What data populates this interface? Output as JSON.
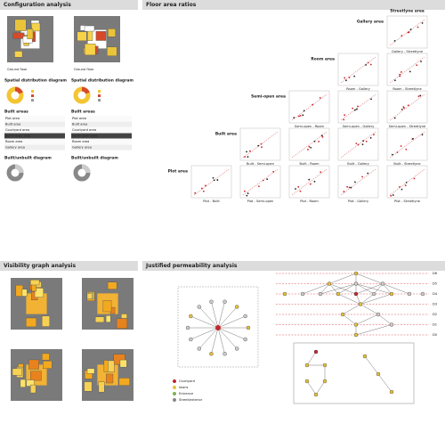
{
  "configuration": {
    "title": "Configuration analysis",
    "columns": [
      {
        "plan_label": "Ground floor",
        "distribution_title": "Spatial distribution diagram",
        "built_title": "Built areas",
        "unbuilt_title": "Built/unbuilt diagram"
      },
      {
        "plan_label": "Ground floor",
        "distribution_title": "Spatial distribution diagram",
        "built_title": "Built areas",
        "unbuilt_title": "Built/unbuilt diagram"
      }
    ],
    "table_rows": [
      "Plot area",
      "Built area",
      "Courtyard area",
      "Semi-open area",
      "Room area",
      "Gallery area"
    ]
  },
  "floor_area": {
    "title": "Floor area ratios",
    "rows": [
      "Plot area",
      "Built area",
      "Semi-open area",
      "Room area",
      "Gallery area",
      "Streetlyne area"
    ],
    "plots": [
      [
        "Plot - Built",
        "Plot - Semi-open",
        "Plot - Room",
        "Plot - Gallery",
        "Plot - Streetlyne"
      ],
      [
        "Built - Semi-open",
        "Built - Room",
        "Built - Gallery",
        "Built - Streetlyne"
      ],
      [
        "Semi-open - Room",
        "Semi-open - Gallery",
        "Semi-open - Streetlyne"
      ],
      [
        "Room - Gallery",
        "Room - Streetlyne"
      ],
      [
        "Gallery - Streetlyne"
      ]
    ]
  },
  "visibility": {
    "title": "Visibility graph analysis"
  },
  "permeability": {
    "title": "Justified permeability analysis",
    "depths": [
      "D6",
      "D5",
      "D4",
      "D3",
      "D2",
      "D1",
      "D0"
    ],
    "legend": [
      "Courtyard",
      "Iwans",
      "Entrance",
      "Street/exterior"
    ]
  }
}
